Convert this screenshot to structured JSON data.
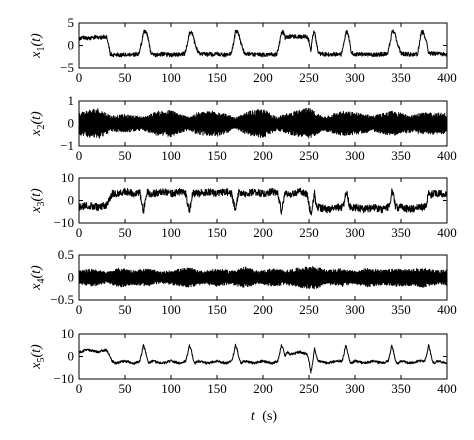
{
  "chart_data": [
    {
      "type": "line",
      "ylabel": {
        "var": "x",
        "sub": "1",
        "arg": "(t)"
      },
      "xlim": [
        0,
        400
      ],
      "ylim": [
        -5,
        5
      ],
      "yticks": [
        "-5",
        "0",
        "5"
      ],
      "xticks": [
        "0",
        "50",
        "100",
        "150",
        "200",
        "250",
        "300",
        "350",
        "400"
      ],
      "series": [
        {
          "x": [
            0,
            5,
            10,
            15,
            20,
            25,
            30,
            32,
            34,
            36,
            40,
            45,
            50,
            55,
            60,
            65,
            68,
            70,
            72,
            74,
            76,
            78,
            80,
            85,
            90,
            95,
            100,
            105,
            110,
            115,
            118,
            120,
            122,
            124,
            126,
            130,
            140,
            150,
            160,
            165,
            168,
            170,
            172,
            174,
            176,
            180,
            190,
            200,
            210,
            215,
            218,
            220,
            222,
            224,
            226,
            230,
            240,
            248,
            250,
            252,
            254,
            256,
            258,
            260,
            270,
            280,
            285,
            288,
            290,
            292,
            294,
            296,
            300,
            310,
            320,
            330,
            335,
            338,
            340,
            342,
            344,
            346,
            350,
            360,
            368,
            370,
            372,
            374,
            376,
            378,
            380,
            390,
            400
          ],
          "y": [
            1.6,
            1.8,
            1.5,
            1.7,
            1.9,
            1.8,
            2.0,
            0.5,
            -1.8,
            -2.2,
            -2.0,
            -2.2,
            -1.9,
            -2.1,
            -2.0,
            -1.8,
            0.5,
            3.0,
            3.2,
            2.5,
            0.8,
            -1.6,
            -2.0,
            -2.1,
            -1.9,
            -2.0,
            -2.1,
            -2.0,
            -1.9,
            -1.8,
            0.5,
            2.8,
            3.0,
            2.2,
            0.4,
            -1.8,
            -2.0,
            -1.9,
            -2.1,
            -1.9,
            0.5,
            2.9,
            3.1,
            2.3,
            0.5,
            -1.8,
            -2.0,
            -2.1,
            -1.9,
            -2.0,
            0.6,
            2.8,
            3.0,
            1.8,
            1.9,
            2.0,
            1.9,
            2.0,
            1.0,
            -1.5,
            2.5,
            3.0,
            0.8,
            -1.8,
            -2.0,
            -1.9,
            -2.0,
            0.5,
            2.8,
            3.0,
            1.0,
            -1.6,
            -1.9,
            -2.0,
            -2.1,
            -1.9,
            -2.0,
            0.5,
            2.8,
            3.1,
            2.2,
            0.5,
            -1.8,
            -2.0,
            -1.9,
            0.4,
            2.8,
            3.0,
            2.0,
            0.5,
            -1.7,
            -1.9,
            -2.0
          ]
        }
      ],
      "noise_amplitude": 0.5,
      "ylim_display": [
        -5,
        5
      ]
    },
    {
      "type": "line",
      "ylabel": {
        "var": "x",
        "sub": "2",
        "arg": "(t)"
      },
      "xlim": [
        0,
        400
      ],
      "ylim": [
        -1,
        1
      ],
      "yticks": [
        "-1",
        "0",
        "1"
      ],
      "xticks": [
        "0",
        "50",
        "100",
        "150",
        "200",
        "250",
        "300",
        "350",
        "400"
      ],
      "oscillation": {
        "envelope_x": [
          0,
          20,
          35,
          50,
          70,
          85,
          100,
          118,
          130,
          150,
          170,
          185,
          200,
          215,
          235,
          250,
          265,
          285,
          300,
          320,
          340,
          360,
          380,
          400
        ],
        "envelope_y": [
          0.5,
          0.7,
          0.35,
          0.4,
          0.3,
          0.55,
          0.6,
          0.3,
          0.5,
          0.6,
          0.25,
          0.55,
          0.65,
          0.3,
          0.55,
          0.7,
          0.3,
          0.55,
          0.5,
          0.35,
          0.55,
          0.4,
          0.5,
          0.45
        ]
      }
    },
    {
      "type": "line",
      "ylabel": {
        "var": "x",
        "sub": "3",
        "arg": "(t)"
      },
      "xlim": [
        0,
        400
      ],
      "ylim": [
        -10,
        10
      ],
      "yticks": [
        "-10",
        "0",
        "10"
      ],
      "xticks": [
        "0",
        "50",
        "100",
        "150",
        "200",
        "250",
        "300",
        "350",
        "400"
      ],
      "series": [
        {
          "x": [
            0,
            10,
            20,
            30,
            34,
            36,
            40,
            50,
            60,
            66,
            68,
            70,
            72,
            74,
            76,
            80,
            90,
            100,
            110,
            116,
            118,
            120,
            122,
            124,
            126,
            130,
            140,
            150,
            160,
            166,
            168,
            170,
            172,
            174,
            176,
            180,
            190,
            200,
            210,
            216,
            218,
            220,
            222,
            224,
            226,
            230,
            240,
            248,
            250,
            252,
            254,
            256,
            258,
            260,
            270,
            280,
            286,
            288,
            290,
            292,
            294,
            296,
            300,
            310,
            320,
            330,
            336,
            338,
            340,
            342,
            344,
            346,
            350,
            360,
            370,
            376,
            378,
            380,
            382,
            384,
            386,
            390,
            400
          ],
          "y": [
            -3,
            -2,
            -3,
            -2,
            1,
            3,
            3,
            4,
            3,
            4,
            -1,
            -5,
            0,
            4,
            3,
            3,
            4,
            3,
            4,
            3,
            -1,
            -5,
            0,
            4,
            3,
            3,
            4,
            3,
            4,
            3,
            -1,
            -5,
            0,
            4,
            3,
            3,
            4,
            3,
            4,
            3,
            -1,
            -5,
            0,
            3,
            3,
            3,
            4,
            3,
            -2,
            -6,
            -2,
            3,
            -3,
            -3,
            -4,
            -3,
            -3,
            -1,
            4,
            2,
            -3,
            -3,
            -3,
            -4,
            -3,
            -4,
            -3,
            -1,
            4,
            2,
            -3,
            -3,
            -3,
            -4,
            -3,
            -3,
            -1,
            4,
            2,
            3,
            3,
            3,
            3
          ]
        }
      ],
      "noise_amplitude": 1.8
    },
    {
      "type": "line",
      "ylabel": {
        "var": "x",
        "sub": "4",
        "arg": "(t)"
      },
      "xlim": [
        0,
        400
      ],
      "ylim": [
        -0.5,
        0.5
      ],
      "yticks": [
        "-0.5",
        "0",
        "0.5"
      ],
      "xticks": [
        "0",
        "50",
        "100",
        "150",
        "200",
        "250",
        "300",
        "350",
        "400"
      ],
      "oscillation": {
        "envelope_x": [
          0,
          15,
          30,
          45,
          60,
          75,
          90,
          105,
          120,
          135,
          150,
          165,
          180,
          195,
          210,
          225,
          240,
          255,
          270,
          285,
          300,
          315,
          330,
          345,
          360,
          375,
          390,
          400
        ],
        "envelope_y": [
          0.15,
          0.2,
          0.12,
          0.22,
          0.16,
          0.2,
          0.12,
          0.18,
          0.22,
          0.14,
          0.2,
          0.15,
          0.24,
          0.14,
          0.2,
          0.16,
          0.22,
          0.26,
          0.16,
          0.2,
          0.14,
          0.22,
          0.16,
          0.2,
          0.18,
          0.22,
          0.15,
          0.18
        ]
      }
    },
    {
      "type": "line",
      "ylabel": {
        "var": "x",
        "sub": "5",
        "arg": "(t)"
      },
      "xlim": [
        0,
        400
      ],
      "ylim": [
        -10,
        10
      ],
      "yticks": [
        "-10",
        "0",
        "10"
      ],
      "xticks": [
        "0",
        "50",
        "100",
        "150",
        "200",
        "250",
        "300",
        "350",
        "400"
      ],
      "series": [
        {
          "x": [
            0,
            10,
            20,
            30,
            34,
            36,
            40,
            50,
            60,
            66,
            68,
            70,
            72,
            74,
            76,
            80,
            90,
            100,
            110,
            116,
            118,
            120,
            122,
            124,
            126,
            130,
            140,
            150,
            160,
            166,
            168,
            170,
            172,
            174,
            176,
            180,
            190,
            200,
            210,
            216,
            218,
            220,
            222,
            224,
            226,
            230,
            240,
            248,
            250,
            252,
            254,
            256,
            258,
            260,
            270,
            280,
            286,
            288,
            290,
            292,
            294,
            296,
            300,
            310,
            320,
            330,
            336,
            338,
            340,
            342,
            344,
            346,
            350,
            360,
            370,
            376,
            378,
            380,
            382,
            384,
            386,
            390,
            400
          ],
          "y": [
            2,
            3,
            2,
            3,
            0,
            -2,
            -3,
            -2,
            -3,
            -2,
            1,
            5,
            3,
            -1,
            -3,
            -2,
            -3,
            -2,
            -3,
            -2,
            1,
            5,
            3,
            -1,
            -3,
            -2,
            -3,
            -2,
            -3,
            -2,
            1,
            5,
            3,
            -1,
            -3,
            -2,
            -3,
            -2,
            -3,
            -2,
            1,
            5,
            3,
            0,
            2,
            1,
            2,
            1,
            -2,
            -7,
            -3,
            4,
            0,
            -2,
            -3,
            -2,
            -2,
            1,
            5,
            2,
            -2,
            -3,
            -2,
            -3,
            -2,
            -3,
            -2,
            1,
            5,
            2,
            -2,
            -3,
            -2,
            -3,
            -2,
            -2,
            1,
            5,
            2,
            -2,
            -3,
            -2,
            -3
          ]
        }
      ],
      "noise_amplitude": 0.6
    }
  ],
  "xlabel": {
    "var": "t",
    "unit": "(s)"
  }
}
